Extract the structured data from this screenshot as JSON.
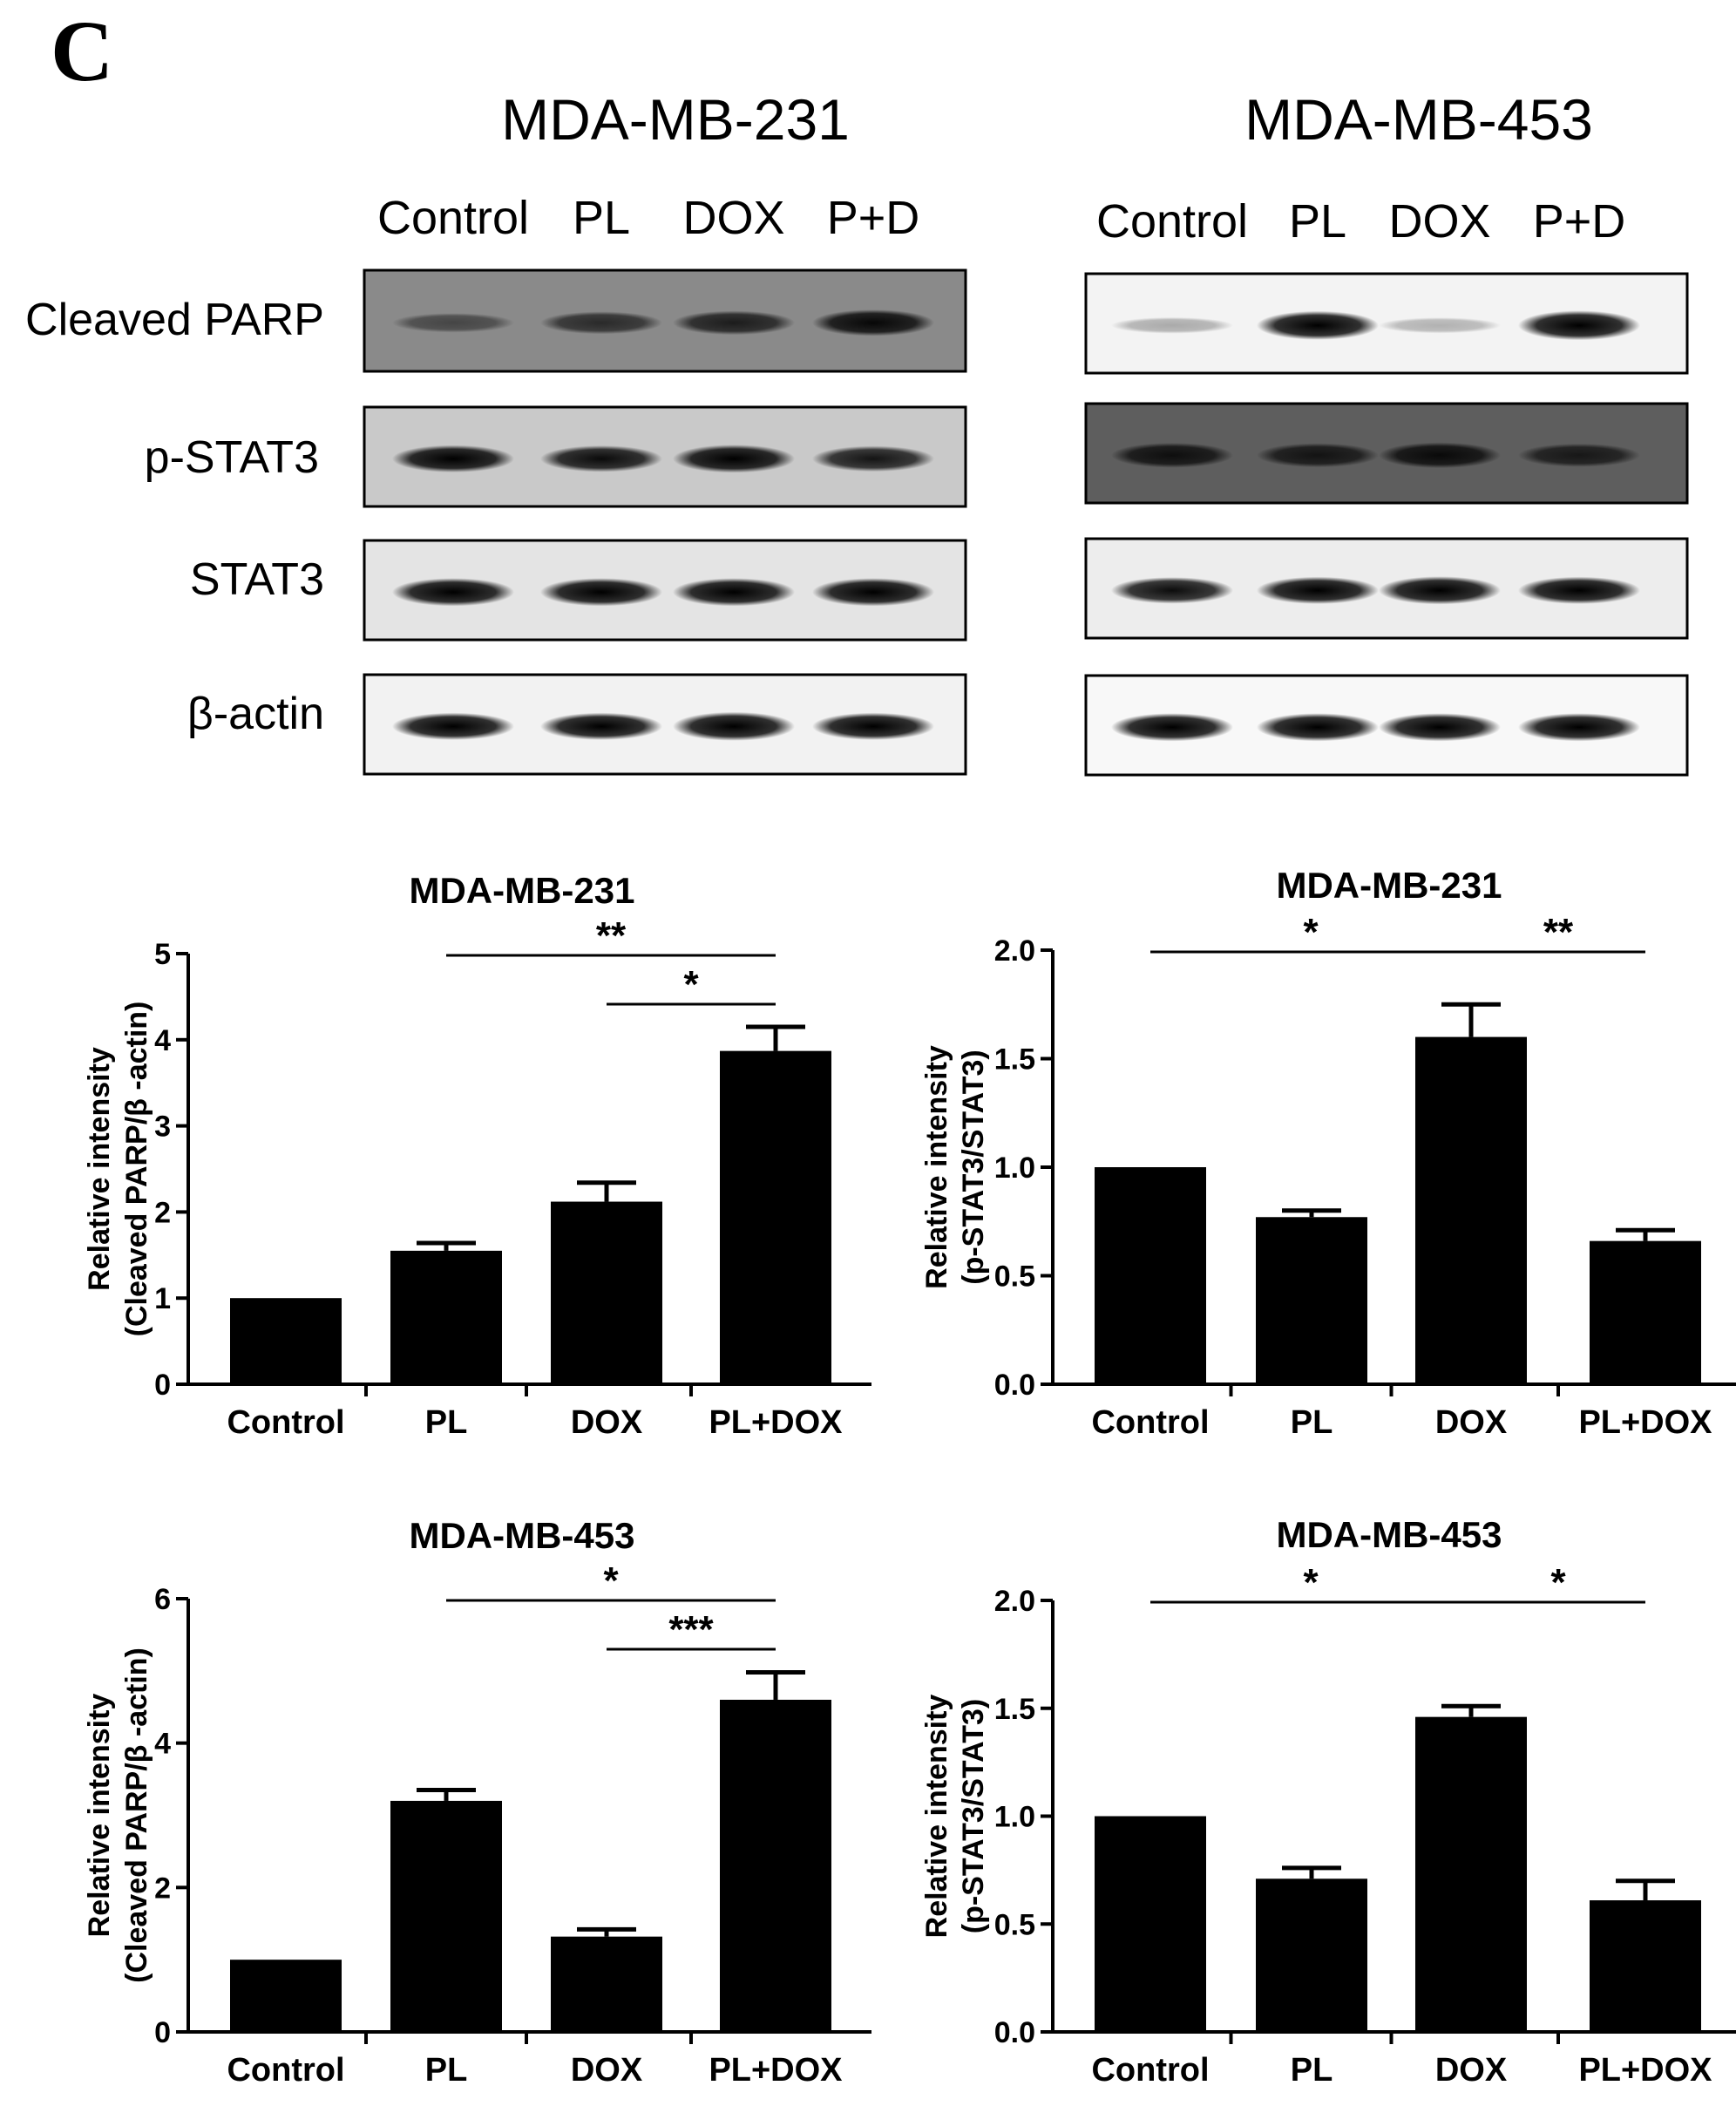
{
  "panel_label": "C",
  "western_blot": {
    "panels": [
      {
        "cell_line": "MDA-MB-231",
        "lanes": [
          "Control",
          "PL",
          "DOX",
          "P+D"
        ],
        "rows": [
          {
            "label": "Cleaved PARP",
            "intensity": [
              0.35,
              0.55,
              0.65,
              0.8
            ]
          },
          {
            "label": "p-STAT3",
            "intensity": [
              0.85,
              0.8,
              0.9,
              0.75
            ]
          },
          {
            "label": "STAT3",
            "intensity": [
              0.9,
              0.9,
              0.9,
              0.9
            ]
          },
          {
            "label": "β-actin",
            "intensity": [
              0.85,
              0.85,
              0.95,
              0.85
            ]
          }
        ]
      },
      {
        "cell_line": "MDA-MB-453",
        "lanes": [
          "Control",
          "PL",
          "DOX",
          "P+D"
        ],
        "rows": [
          {
            "label": "",
            "intensity": [
              0.15,
              0.95,
              0.12,
              1.0
            ]
          },
          {
            "label": "",
            "intensity": [
              0.7,
              0.65,
              0.75,
              0.6
            ]
          },
          {
            "label": "",
            "intensity": [
              0.8,
              0.85,
              0.9,
              0.85
            ]
          },
          {
            "label": "",
            "intensity": [
              0.9,
              0.9,
              0.9,
              0.9
            ]
          }
        ]
      }
    ]
  },
  "chart_data": [
    {
      "type": "bar",
      "title": "MDA-MB-231",
      "categories": [
        "Control",
        "PL",
        "DOX",
        "PL+DOX"
      ],
      "values": [
        1.0,
        1.55,
        2.12,
        3.87
      ],
      "errors": [
        0,
        0.09,
        0.22,
        0.28
      ],
      "ylabel_lines": [
        "Relative intensity",
        "(Cleaved PARP/β -actin)"
      ],
      "ylim": [
        0,
        5
      ],
      "yticks": [
        "0",
        "1",
        "2",
        "3",
        "4",
        "5"
      ],
      "significance": [
        {
          "from": 1,
          "to": 3,
          "label": "**",
          "level": 0
        },
        {
          "from": 2,
          "to": 3,
          "label": "*",
          "level": 1
        }
      ]
    },
    {
      "type": "bar",
      "title": "MDA-MB-231",
      "categories": [
        "Control",
        "PL",
        "DOX",
        "PL+DOX"
      ],
      "values": [
        1.0,
        0.77,
        1.6,
        0.66
      ],
      "errors": [
        0,
        0.03,
        0.15,
        0.05
      ],
      "ylabel_lines": [
        "Relative intensity",
        "(p-STAT3/STAT3)"
      ],
      "ylim": [
        0,
        2
      ],
      "yticks": [
        "0.0",
        "0.5",
        "1.0",
        "1.5",
        "2.0"
      ],
      "significance": [
        {
          "from": 0,
          "to": 2,
          "label": "*",
          "level": 0
        },
        {
          "from": 2,
          "to": 3,
          "label": "**",
          "level": 0
        }
      ]
    },
    {
      "type": "bar",
      "title": "MDA-MB-453",
      "categories": [
        "Control",
        "PL",
        "DOX",
        "PL+DOX"
      ],
      "values": [
        1.0,
        3.2,
        1.32,
        4.6
      ],
      "errors": [
        0,
        0.15,
        0.1,
        0.38
      ],
      "ylabel_lines": [
        "Relative intensity",
        "(Cleaved PARP/β -actin)"
      ],
      "ylim": [
        0,
        6
      ],
      "yticks": [
        "0",
        "2",
        "4",
        "6"
      ],
      "significance": [
        {
          "from": 1,
          "to": 3,
          "label": "*",
          "level": 0
        },
        {
          "from": 2,
          "to": 3,
          "label": "***",
          "level": 1
        }
      ]
    },
    {
      "type": "bar",
      "title": "MDA-MB-453",
      "categories": [
        "Control",
        "PL",
        "DOX",
        "PL+DOX"
      ],
      "values": [
        1.0,
        0.71,
        1.46,
        0.61
      ],
      "errors": [
        0,
        0.05,
        0.05,
        0.09
      ],
      "ylabel_lines": [
        "Relative intensity",
        "(p-STAT3/STAT3)"
      ],
      "ylim": [
        0,
        2
      ],
      "yticks": [
        "0.0",
        "0.5",
        "1.0",
        "1.5",
        "2.0"
      ],
      "significance": [
        {
          "from": 0,
          "to": 2,
          "label": "*",
          "level": 0
        },
        {
          "from": 2,
          "to": 3,
          "label": "*",
          "level": 0
        }
      ]
    }
  ]
}
